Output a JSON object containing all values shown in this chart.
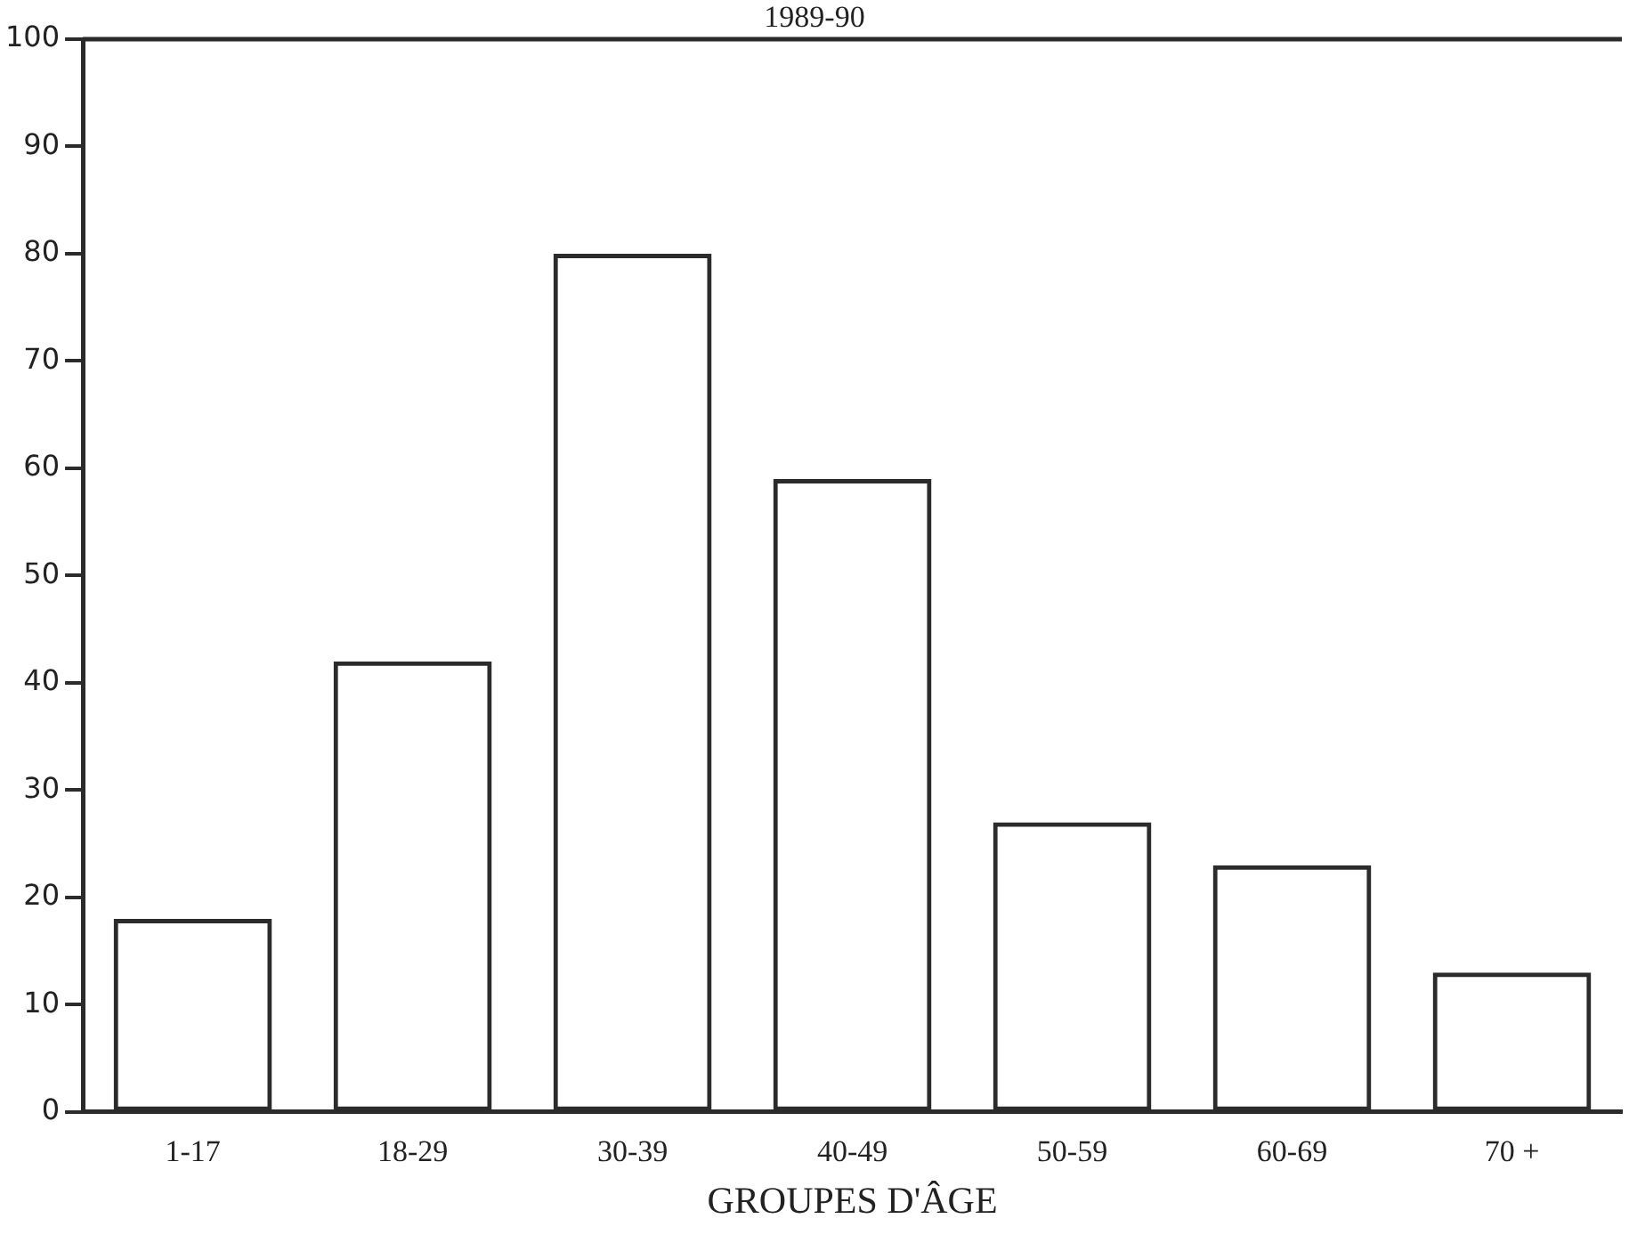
{
  "chart_data": {
    "type": "bar",
    "title": "1989-90",
    "xlabel": "GROUPES D'ÂGE",
    "categories": [
      "1-17",
      "18-29",
      "30-39",
      "40-49",
      "50-59",
      "60-69",
      "70 +"
    ],
    "values": [
      18,
      42,
      80,
      59,
      27,
      23,
      13
    ],
    "color": "#2b2b2b",
    "ylim": [
      0,
      100
    ],
    "yticks": [
      0,
      10,
      20,
      30,
      40,
      50,
      60,
      70,
      80,
      90,
      100
    ],
    "grid": false,
    "legend": false
  }
}
